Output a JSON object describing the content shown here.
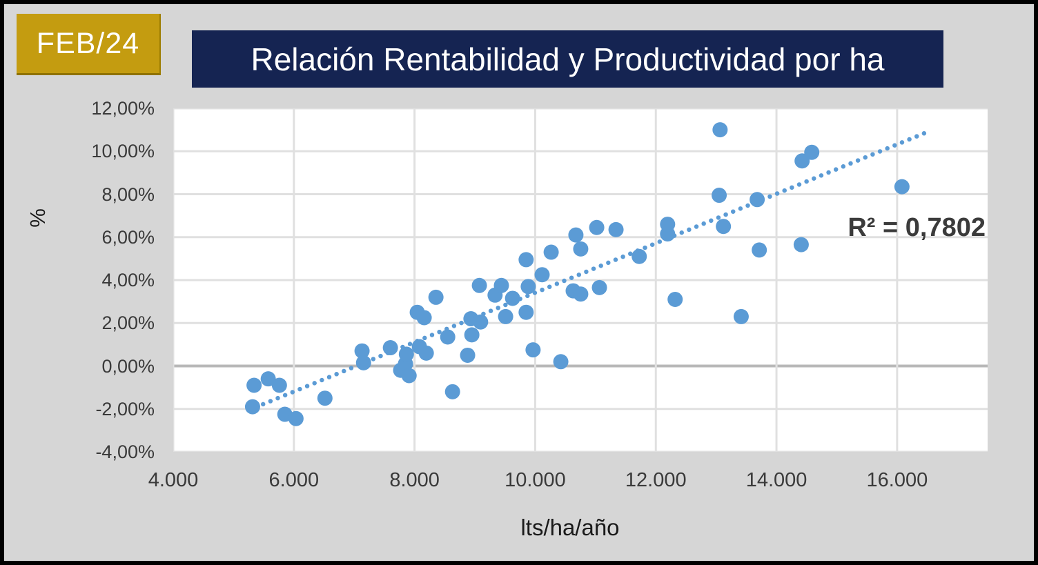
{
  "badge": {
    "label": "FEB/24",
    "bg": "#C49C10",
    "fg": "#FFFFFF"
  },
  "header": {
    "title": "Relación Rentabilidad y Productividad por ha",
    "bg": "#152452",
    "fg": "#FFFFFF"
  },
  "chart_data": {
    "type": "scatter",
    "title": "Relación Rentabilidad y Productividad por ha",
    "xlabel": "lts/ha/año",
    "ylabel": "%",
    "xlim": [
      4000,
      17500
    ],
    "ylim": [
      -4,
      12
    ],
    "x_tick_values": [
      4000,
      6000,
      8000,
      10000,
      12000,
      14000,
      16000
    ],
    "x_tick_labels": [
      "4.000",
      "6.000",
      "8.000",
      "10.000",
      "12.000",
      "14.000",
      "16.000"
    ],
    "y_tick_values": [
      12,
      10,
      8,
      6,
      4,
      2,
      0,
      -2,
      -4
    ],
    "y_tick_labels": [
      "12,00%",
      "10,00%",
      "8,00%",
      "6,00%",
      "4,00%",
      "2,00%",
      "0,00%",
      "-2,00%",
      "-4,00%"
    ],
    "grid": true,
    "legend": "none",
    "marker_color": "#5B9BD5",
    "marker_radius_px": 11,
    "grid_color": "#E0E0E0",
    "zero_line_color": "#B8B8B8",
    "points": [
      [
        5315,
        -1.9
      ],
      [
        5340,
        -0.9
      ],
      [
        5575,
        -0.6
      ],
      [
        5760,
        -0.9
      ],
      [
        5850,
        -2.25
      ],
      [
        6035,
        -2.45
      ],
      [
        6515,
        -1.5
      ],
      [
        7130,
        0.7
      ],
      [
        7155,
        0.15
      ],
      [
        7600,
        0.85
      ],
      [
        7770,
        -0.2
      ],
      [
        7850,
        0.1
      ],
      [
        7865,
        0.55
      ],
      [
        7910,
        -0.45
      ],
      [
        8045,
        2.5
      ],
      [
        8080,
        0.9
      ],
      [
        8160,
        2.25
      ],
      [
        8195,
        0.6
      ],
      [
        8355,
        3.2
      ],
      [
        8550,
        1.35
      ],
      [
        8630,
        -1.2
      ],
      [
        8880,
        0.5
      ],
      [
        8935,
        2.2
      ],
      [
        8950,
        1.45
      ],
      [
        9075,
        3.75
      ],
      [
        9095,
        2.05
      ],
      [
        9335,
        3.3
      ],
      [
        9440,
        3.75
      ],
      [
        9510,
        2.3
      ],
      [
        9625,
        3.15
      ],
      [
        9850,
        2.5
      ],
      [
        9850,
        4.95
      ],
      [
        9885,
        3.7
      ],
      [
        9965,
        0.75
      ],
      [
        10115,
        4.25
      ],
      [
        10265,
        5.3
      ],
      [
        10425,
        0.2
      ],
      [
        10630,
        3.5
      ],
      [
        10675,
        6.1
      ],
      [
        10755,
        3.35
      ],
      [
        10755,
        5.45
      ],
      [
        11020,
        6.45
      ],
      [
        11065,
        3.65
      ],
      [
        11340,
        6.35
      ],
      [
        11725,
        5.1
      ],
      [
        12195,
        6.15
      ],
      [
        12195,
        6.6
      ],
      [
        12320,
        3.1
      ],
      [
        13050,
        7.95
      ],
      [
        13065,
        11.0
      ],
      [
        13120,
        6.5
      ],
      [
        13415,
        2.3
      ],
      [
        13680,
        7.75
      ],
      [
        13715,
        5.4
      ],
      [
        14410,
        5.65
      ],
      [
        14425,
        9.55
      ],
      [
        14585,
        9.95
      ],
      [
        16080,
        8.35
      ]
    ],
    "trendline": {
      "style": "dotted",
      "color": "#5B9BD5",
      "start": [
        5490,
        -1.78
      ],
      "end": [
        16530,
        10.93
      ],
      "r2": 0.7802,
      "r2_label": "R² = 0,7802"
    }
  }
}
